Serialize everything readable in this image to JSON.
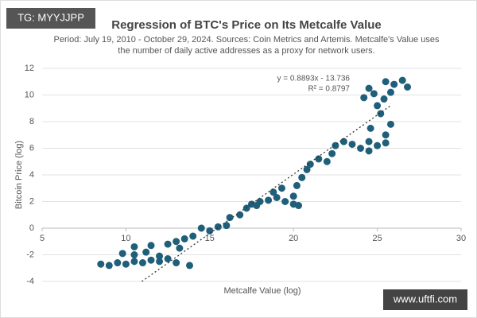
{
  "watermark": "TG: MYYJJPP",
  "footer": "www.uftfi.com",
  "chart_data": {
    "type": "scatter",
    "title": "Regression of BTC's Price on Its Metcalfe Value",
    "subtitle": [
      "Period: July 19, 2010 - October 29, 2024. Sources: Coin Metrics and Artemis. Metcalfe's Value uses",
      "the number of daily active addresses as a proxy for network users."
    ],
    "x_label": "Metcalfe Value (log)",
    "y_label": "Bitcoin Price (log)",
    "annotations": [
      "y = 0.8893x - 13.736",
      "R² = 0.8797"
    ],
    "trendline": {
      "slope": 0.8893,
      "intercept": -13.736
    },
    "color": "#1f5f7a",
    "x": [
      8.5,
      9,
      9.5,
      10,
      10.5,
      11,
      11.5,
      12,
      12.5,
      13,
      13.8,
      9.8,
      10.5,
      11.2,
      12,
      10.5,
      11.5,
      12.5,
      13.2,
      13.5,
      14,
      13,
      14.5,
      15,
      15.5,
      16,
      16.2,
      16.8,
      17.2,
      17.5,
      18,
      18.5,
      19,
      19.3,
      18.8,
      17.8,
      19.5,
      20,
      20.3,
      20,
      20.2,
      20.5,
      20.8,
      21,
      21.5,
      22,
      22.3,
      22.5,
      23,
      23.5,
      24,
      24.5,
      24.5,
      25,
      25.5,
      25.5,
      25.8,
      25.2,
      25,
      25.4,
      25.8,
      26,
      25.5,
      26.5,
      24.5,
      24.2,
      24.8,
      26.8,
      24.6
    ],
    "values": [
      -2.7,
      -2.8,
      -2.6,
      -2.7,
      -2.5,
      -2.6,
      -2.4,
      -2.5,
      -2.3,
      -2.6,
      -2.8,
      -1.9,
      -2.0,
      -1.8,
      -2.1,
      -1.4,
      -1.3,
      -1.2,
      -1.5,
      -0.8,
      -0.6,
      -1.0,
      0.0,
      -0.2,
      0.1,
      0.2,
      0.8,
      1.0,
      1.5,
      1.8,
      2.0,
      2.1,
      2.3,
      3.0,
      2.7,
      1.7,
      2.0,
      1.8,
      1.7,
      2.4,
      3.2,
      3.8,
      4.4,
      4.8,
      5.2,
      5.0,
      5.6,
      6.2,
      6.5,
      6.3,
      6.0,
      5.8,
      6.5,
      6.2,
      6.4,
      7.0,
      7.8,
      8.6,
      9.2,
      9.7,
      10.2,
      10.8,
      11.0,
      11.1,
      10.5,
      9.8,
      10.1,
      10.6,
      7.5
    ],
    "xlim": [
      5,
      30
    ],
    "xticks": [
      5,
      10,
      15,
      20,
      25,
      30
    ],
    "ylim": [
      -4,
      12
    ],
    "yticks": [
      -4,
      -2,
      0,
      2,
      4,
      6,
      8,
      10,
      12
    ],
    "grid": true
  }
}
